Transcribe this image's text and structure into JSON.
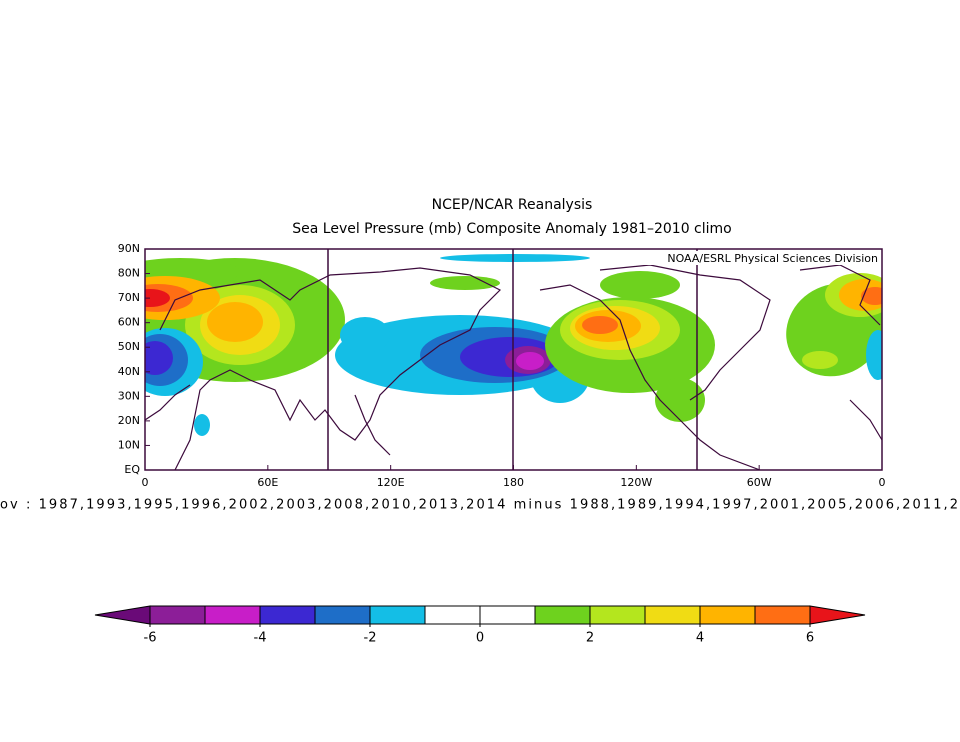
{
  "header": {
    "title": "NCEP/NCAR Reanalysis",
    "subtitle": "Sea Level Pressure (mb) Composite Anomaly 1981–2010 climo"
  },
  "map": {
    "credit": "NOAA/ESRL Physical Sciences Division",
    "lat_labels": [
      "90N",
      "80N",
      "70N",
      "60N",
      "50N",
      "40N",
      "30N",
      "20N",
      "10N",
      "EQ"
    ],
    "lon_labels": [
      "0",
      "60E",
      "120E",
      "180",
      "120W",
      "60W",
      "0"
    ],
    "caption": "ov : 1987,1993,1995,1996,2002,2003,2008,2010,2013,2014 minus 1988,1989,1994,1997,2001,2005,2006,2011,2"
  },
  "colorbar": {
    "lim": [
      -6,
      6
    ],
    "ticks": [
      -6,
      -4,
      -2,
      0,
      2,
      4,
      6
    ],
    "under_color": "#6a0a78",
    "over_color": "#e8141a",
    "colors": [
      "#8c1e98",
      "#c81ec8",
      "#3c28d2",
      "#1e6ec8",
      "#14bee6",
      "#ffffff",
      "#ffffff",
      "#6ed21e",
      "#b4e61e",
      "#f0dc14",
      "#ffb400",
      "#ff6e14"
    ]
  }
}
